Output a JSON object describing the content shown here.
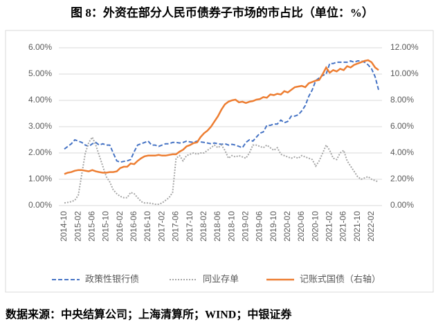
{
  "chart_data": {
    "type": "line",
    "title": "图 8：外资在部分人民币债券子市场的市占比（单位：%）",
    "source": "数据来源：中央结算公司；上海清算所；WIND；中银证券",
    "categories": [
      "2014-10",
      null,
      null,
      null,
      "2015-02",
      null,
      null,
      null,
      "2015-06",
      null,
      null,
      null,
      "2015-10",
      null,
      null,
      null,
      "2016-02",
      null,
      null,
      null,
      "2016-06",
      null,
      null,
      null,
      "2016-10",
      null,
      null,
      null,
      "2017-02",
      null,
      null,
      null,
      "2017-06",
      null,
      null,
      null,
      "2017-10",
      null,
      null,
      null,
      "2018-02",
      null,
      null,
      null,
      "2018-06",
      null,
      null,
      null,
      "2018-10",
      null,
      null,
      null,
      "2019-02",
      null,
      null,
      null,
      "2019-06",
      null,
      null,
      null,
      "2019-10",
      null,
      null,
      null,
      "2020-02",
      null,
      null,
      null,
      "2020-06",
      null,
      null,
      null,
      "2020-10",
      null,
      null,
      null,
      "2021-02",
      null,
      null,
      null,
      "2021-06",
      null,
      null,
      null,
      "2021-10",
      null,
      null,
      null,
      "2022-02",
      null,
      null
    ],
    "series": [
      {
        "name": "政策性银行债",
        "color": "#4472c4",
        "dash": "dashed",
        "axis": "y",
        "values": [
          2.15,
          2.25,
          2.35,
          2.5,
          2.45,
          2.4,
          2.3,
          2.25,
          2.35,
          2.4,
          2.3,
          2.35,
          2.3,
          2.3,
          2.0,
          1.7,
          1.65,
          1.68,
          1.7,
          1.75,
          2.05,
          2.3,
          2.35,
          2.4,
          2.45,
          2.3,
          2.3,
          2.25,
          2.3,
          2.35,
          2.35,
          2.4,
          2.4,
          2.38,
          2.4,
          2.45,
          2.42,
          2.4,
          2.45,
          2.42,
          2.4,
          2.38,
          2.35,
          2.38,
          2.35,
          2.33,
          2.35,
          2.3,
          2.33,
          2.3,
          2.25,
          2.2,
          2.4,
          2.5,
          2.45,
          2.6,
          2.75,
          2.8,
          3.05,
          3.05,
          3.1,
          3.1,
          3.25,
          3.15,
          3.2,
          3.4,
          3.4,
          3.45,
          3.6,
          3.8,
          4.15,
          4.4,
          4.75,
          4.85,
          4.95,
          5.0,
          5.4,
          5.4,
          5.45,
          5.45,
          5.45,
          5.45,
          5.5,
          5.45,
          5.5,
          5.5,
          5.45,
          5.35,
          5.2,
          4.9,
          4.4
        ]
      },
      {
        "name": "同业存单",
        "color": "#a5a5a5",
        "dash": "dotted",
        "axis": "y",
        "values": [
          0.1,
          0.12,
          0.15,
          0.2,
          0.4,
          1.2,
          2.0,
          2.4,
          2.6,
          2.3,
          1.9,
          1.5,
          1.1,
          0.9,
          0.6,
          0.45,
          0.35,
          0.3,
          0.3,
          0.5,
          0.45,
          0.3,
          0.15,
          0.1,
          0.1,
          0.08,
          0.05,
          0.05,
          0.1,
          0.2,
          0.3,
          0.5,
          1.8,
          1.9,
          1.7,
          1.9,
          1.95,
          2.0,
          1.95,
          2.0,
          2.0,
          2.1,
          2.2,
          2.3,
          2.2,
          2.3,
          2.1,
          1.8,
          1.9,
          1.85,
          1.9,
          1.85,
          1.8,
          2.0,
          2.3,
          2.3,
          2.25,
          2.2,
          2.3,
          2.2,
          2.1,
          2.2,
          1.95,
          1.9,
          1.85,
          1.8,
          1.85,
          1.8,
          1.9,
          1.85,
          1.8,
          1.75,
          1.5,
          1.7,
          2.0,
          2.3,
          2.1,
          1.8,
          1.75,
          2.0,
          2.1,
          1.7,
          1.5,
          1.3,
          1.1,
          1.0,
          1.05,
          1.1,
          1.0,
          0.95,
          0.9
        ]
      },
      {
        "name": "记账式国债（右轴）",
        "color": "#ed7d31",
        "dash": "solid",
        "axis": "y2",
        "values": [
          2.4,
          2.5,
          2.55,
          2.65,
          2.7,
          2.7,
          2.65,
          2.6,
          2.7,
          2.6,
          2.55,
          2.5,
          2.5,
          2.55,
          2.55,
          2.6,
          2.85,
          2.95,
          2.95,
          3.2,
          3.15,
          3.4,
          3.6,
          3.75,
          3.8,
          3.8,
          3.8,
          3.85,
          3.8,
          3.8,
          3.85,
          3.9,
          3.9,
          4.1,
          4.25,
          4.5,
          4.6,
          4.75,
          4.8,
          5.2,
          5.5,
          5.7,
          6.0,
          6.4,
          6.8,
          7.3,
          7.7,
          7.9,
          8.0,
          8.05,
          7.85,
          7.9,
          7.8,
          7.9,
          7.95,
          8.05,
          8.1,
          8.25,
          8.2,
          8.45,
          8.4,
          8.5,
          8.45,
          8.7,
          8.6,
          8.8,
          9.0,
          9.05,
          9.1,
          9.0,
          9.3,
          9.4,
          9.5,
          9.55,
          10.0,
          10.5,
          10.1,
          10.3,
          10.2,
          10.4,
          10.3,
          10.6,
          10.5,
          10.7,
          10.8,
          10.9,
          11.0,
          11.05,
          10.9,
          10.5,
          10.3
        ]
      }
    ],
    "ylim": [
      0,
      6
    ],
    "yticks": [
      {
        "value": 0,
        "label": "0.00%"
      },
      {
        "value": 1,
        "label": "1.00%"
      },
      {
        "value": 2,
        "label": "2.00%"
      },
      {
        "value": 3,
        "label": "3.00%"
      },
      {
        "value": 4,
        "label": "4.00%"
      },
      {
        "value": 5,
        "label": "5.00%"
      },
      {
        "value": 6,
        "label": "6.00%"
      }
    ],
    "y2lim": [
      0,
      12
    ],
    "y2ticks": [
      {
        "value": 0,
        "label": "0.00%"
      },
      {
        "value": 2,
        "label": "2.00%"
      },
      {
        "value": 4,
        "label": "4.00%"
      },
      {
        "value": 6,
        "label": "6.00%"
      },
      {
        "value": 8,
        "label": "8.00%"
      },
      {
        "value": 10,
        "label": "10.00%"
      },
      {
        "value": 12,
        "label": "12.00%"
      }
    ],
    "grid": true,
    "legend": "bottom"
  }
}
